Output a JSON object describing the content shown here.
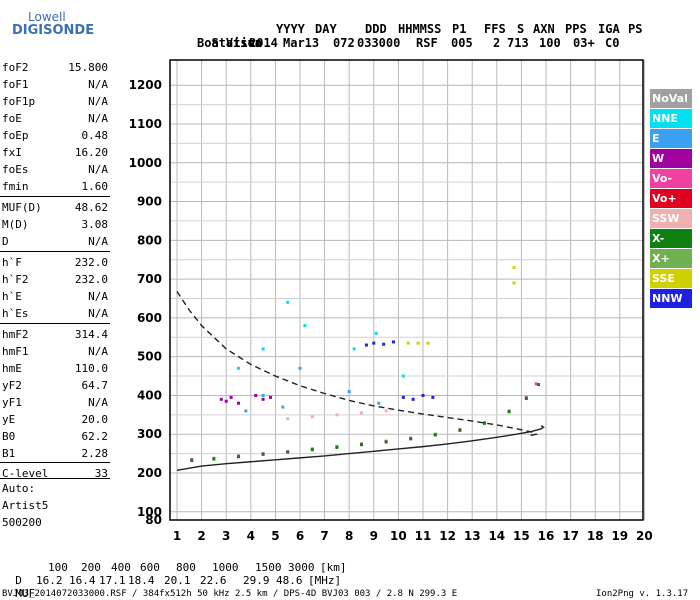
{
  "logo": {
    "line1": "Lowell",
    "line2": "DIGISONDE"
  },
  "header": {
    "row1": [
      "Station",
      "YYYY",
      "DAY",
      "DDD",
      "HHMMSS",
      "P1",
      "FFS",
      "S",
      "AXN",
      "PPS",
      "IGA",
      "PS"
    ],
    "row2": [
      "Boa Vista",
      "2014",
      "Mar13",
      "072",
      "033000",
      "RSF",
      "005",
      "2",
      "713",
      "100",
      "03+",
      "C0"
    ]
  },
  "params": [
    {
      "name": "foF2",
      "value": "15.800"
    },
    {
      "name": "foF1",
      "value": "N/A"
    },
    {
      "name": "foF1p",
      "value": "N/A"
    },
    {
      "name": "foE",
      "value": "N/A"
    },
    {
      "name": "foEp",
      "value": "0.48"
    },
    {
      "name": "fxI",
      "value": "16.20"
    },
    {
      "name": "foEs",
      "value": "N/A"
    },
    {
      "name": "fmin",
      "value": "1.60"
    },
    {
      "name": "MUF(D)",
      "value": "48.62"
    },
    {
      "name": "M(D)",
      "value": "3.08"
    },
    {
      "name": "D",
      "value": "N/A"
    },
    {
      "name": "h`F",
      "value": "232.0"
    },
    {
      "name": "h`F2",
      "value": "232.0"
    },
    {
      "name": "h`E",
      "value": "N/A"
    },
    {
      "name": "h`Es",
      "value": "N/A"
    },
    {
      "name": "hmF2",
      "value": "314.4"
    },
    {
      "name": "hmF1",
      "value": "N/A"
    },
    {
      "name": "hmE",
      "value": "110.0"
    },
    {
      "name": "yF2",
      "value": "64.7"
    },
    {
      "name": "yF1",
      "value": "N/A"
    },
    {
      "name": "yE",
      "value": "20.0"
    },
    {
      "name": "B0",
      "value": "62.2"
    },
    {
      "name": "B1",
      "value": "2.28"
    },
    {
      "name": "C-level",
      "value": "33"
    }
  ],
  "auto": {
    "l1": "Auto:",
    "l2": "Artist5",
    "l3": "500200"
  },
  "legend": [
    {
      "label": "NoVal",
      "color": "#a0a0a0"
    },
    {
      "label": "NNE",
      "color": "#00e0f0"
    },
    {
      "label": "E",
      "color": "#3aa0f0"
    },
    {
      "label": "W",
      "color": "#a000a0"
    },
    {
      "label": "Vo-",
      "color": "#f040a0"
    },
    {
      "label": "Vo+",
      "color": "#e00020"
    },
    {
      "label": "SSW",
      "color": "#f0b0b0"
    },
    {
      "label": "X-",
      "color": "#108010"
    },
    {
      "label": "X+",
      "color": "#70b050"
    },
    {
      "label": "SSE",
      "color": "#d0d000"
    },
    {
      "label": "NNW",
      "color": "#2020e0"
    }
  ],
  "muf_table": {
    "row1_label": "D",
    "row1": [
      "100",
      "200",
      "400",
      "600",
      "800",
      "1000",
      "1500",
      "3000",
      "[km]"
    ],
    "row2_label": "MUF",
    "row2": [
      "16.2",
      "16.4",
      "17.1",
      "18.4",
      "20.1",
      "22.6",
      "29.9",
      "48.6",
      "[MHz]"
    ]
  },
  "footer": {
    "left": "BVJ03_2014072033000.RSF / 384fx512h 50 kHz 2.5 km / DPS-4D BVJ03 003 / 2.8 N 299.3 E",
    "right": "Ion2Png v. 1.3.17"
  },
  "chart_data": {
    "type": "scatter",
    "xlim": [
      1,
      20
    ],
    "ylim": [
      80,
      1200
    ],
    "x_ticks": [
      1,
      2,
      3,
      4,
      5,
      6,
      7,
      8,
      9,
      10,
      11,
      12,
      13,
      14,
      15,
      16,
      17,
      18,
      19,
      20
    ],
    "y_ticks": [
      80,
      100,
      200,
      300,
      400,
      500,
      600,
      700,
      800,
      900,
      1000,
      1100,
      1200
    ],
    "grid": true,
    "legend_position": "right",
    "series": [
      {
        "name": "Vo-",
        "color": "#f040a0",
        "x": [
          1.6,
          2.5,
          3.5,
          4.5,
          5.5,
          6.5,
          7.5,
          8.5,
          9.5,
          10.5,
          11.5,
          12.5,
          13.5,
          14.5,
          15.2,
          15.6
        ],
        "y": [
          235,
          238,
          244,
          250,
          255,
          262,
          268,
          275,
          282,
          290,
          300,
          312,
          330,
          360,
          395,
          430
        ]
      },
      {
        "name": "X-",
        "color": "#108010",
        "x": [
          1.6,
          2.5,
          3.5,
          4.5,
          5.5,
          6.5,
          7.5,
          8.5,
          9.5,
          10.5,
          11.5,
          12.5,
          13.5,
          14.5,
          15.2,
          15.7
        ],
        "y": [
          232,
          236,
          242,
          248,
          254,
          260,
          266,
          273,
          280,
          288,
          298,
          310,
          328,
          358,
          392,
          428
        ]
      },
      {
        "name": "W",
        "color": "#a000a0",
        "x": [
          2.8,
          3.0,
          3.2,
          3.5,
          4.2,
          4.5,
          4.8
        ],
        "y": [
          390,
          385,
          395,
          380,
          400,
          390,
          395
        ]
      },
      {
        "name": "NNW",
        "color": "#2020e0",
        "x": [
          8.7,
          9.0,
          9.4,
          9.8,
          10.2,
          10.6,
          11.0,
          11.4
        ],
        "y": [
          530,
          535,
          532,
          538,
          395,
          390,
          400,
          395
        ]
      },
      {
        "name": "SSE",
        "color": "#d0d000",
        "x": [
          10.4,
          10.8,
          11.2,
          14.7,
          14.7
        ],
        "y": [
          535,
          535,
          535,
          690,
          730
        ]
      },
      {
        "name": "NNE",
        "color": "#00e0f0",
        "x": [
          3.5,
          4.5,
          5.5,
          6.2,
          8.2,
          9.1,
          10.2
        ],
        "y": [
          470,
          520,
          640,
          580,
          520,
          560,
          450
        ]
      },
      {
        "name": "E",
        "color": "#3aa0f0",
        "x": [
          3.8,
          4.5,
          5.3,
          6.0,
          8.0,
          9.2
        ],
        "y": [
          360,
          400,
          370,
          470,
          410,
          380
        ]
      },
      {
        "name": "SSW",
        "color": "#f0b0b0",
        "x": [
          5.5,
          6.5,
          7.5,
          8.5,
          9.5
        ],
        "y": [
          340,
          345,
          350,
          355,
          360
        ]
      }
    ],
    "curves": [
      {
        "name": "profile-solid",
        "x": [
          1.0,
          2.0,
          3.0,
          4.0,
          5.0,
          6.0,
          7.0,
          8.0,
          9.0,
          10.0,
          11.0,
          12.0,
          13.0,
          14.0,
          14.8,
          15.4,
          15.8,
          15.9,
          15.8
        ],
        "y": [
          207,
          218,
          224,
          229,
          234,
          239,
          244,
          250,
          256,
          262,
          268,
          275,
          283,
          292,
          300,
          307,
          314,
          318,
          322
        ]
      },
      {
        "name": "profile-dashed",
        "x": [
          1.0,
          1.5,
          2.0,
          3.0,
          4.0,
          5.0,
          6.0,
          7.0,
          8.0,
          9.0,
          10.0,
          11.0,
          12.0,
          13.0,
          14.0,
          14.8,
          15.4,
          15.6,
          15.3
        ],
        "y": [
          668,
          620,
          580,
          520,
          480,
          450,
          425,
          405,
          387,
          373,
          362,
          352,
          343,
          334,
          324,
          314,
          306,
          300,
          296
        ]
      }
    ]
  }
}
